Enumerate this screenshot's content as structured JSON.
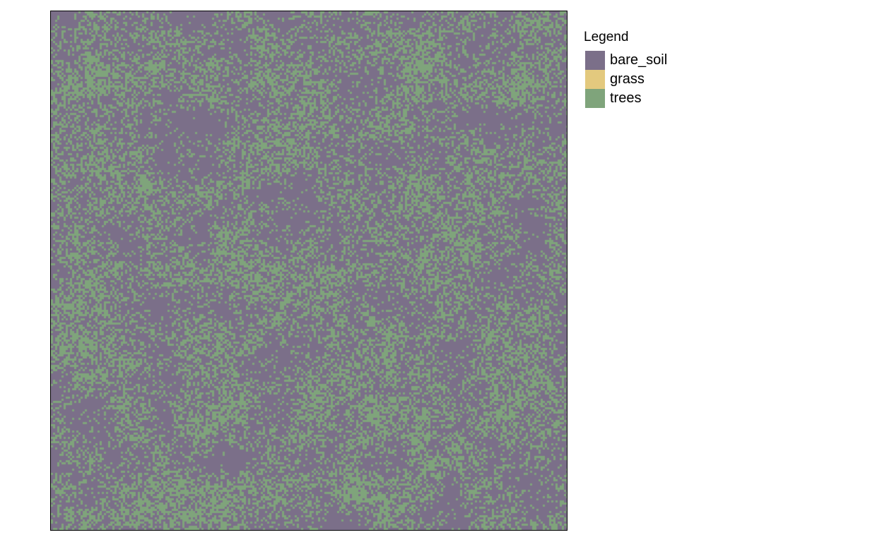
{
  "map": {
    "legend": {
      "title": "Legend",
      "items": [
        {
          "label": "bare_soil",
          "color": "#7b6f89"
        },
        {
          "label": "grass",
          "color": "#e3c97e"
        },
        {
          "label": "trees",
          "color": "#7fa47b"
        }
      ]
    },
    "classes_present": [
      "bare_soil",
      "trees"
    ],
    "approx_tree_fraction": 0.32
  }
}
